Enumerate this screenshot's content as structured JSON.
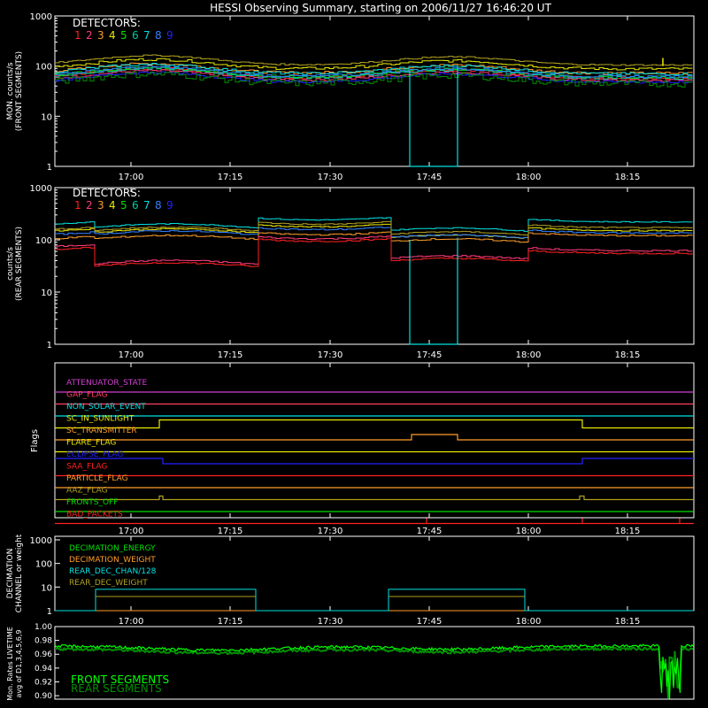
{
  "title": "HESSI Observing Summary, starting on 2006/11/27 16:46:20 UT",
  "colors": {
    "det": [
      "#ff2020",
      "#ff3b7a",
      "#ff9d2a",
      "#e8e800",
      "#00e000",
      "#00c8a0",
      "#00e0e0",
      "#3080ff",
      "#2020ff"
    ],
    "olive": "#b0a020",
    "bright_green": "#00ff00",
    "dark_green": "#009000"
  },
  "xaxis": {
    "start": "16:46:20",
    "end": "18:27:00",
    "ticks": [
      "17:00",
      "17:15",
      "17:30",
      "17:45",
      "18:00",
      "18:15"
    ]
  },
  "panels": {
    "front": {
      "label": "DETECTORS:",
      "digits": [
        "1",
        "2",
        "3",
        "4",
        "5",
        "6",
        "7",
        "8",
        "9"
      ],
      "ylabel": "MON. counts/s\n(FRONT SEGMENTS)",
      "ylog": true,
      "yticks": [
        "1",
        "10",
        "100",
        "1000"
      ],
      "ylim": [
        1,
        1000
      ]
    },
    "rear": {
      "label": "DETECTORS:",
      "digits": [
        "1",
        "2",
        "3",
        "4",
        "5",
        "6",
        "7",
        "8",
        "9"
      ],
      "ylabel": "counts/s\n(REAR SEGMENTS)",
      "ylog": true,
      "yticks": [
        "1",
        "10",
        "100",
        "1000"
      ],
      "ylim": [
        1,
        1000
      ]
    },
    "flags": {
      "ylabel": "Flags",
      "items": [
        {
          "label": "ATTENUATOR_STATE",
          "color": "#d040d0"
        },
        {
          "label": "GAP_FLAG",
          "color": "#ff4060"
        },
        {
          "label": "NON_SOLAR_EVENT",
          "color": "#00e0e0"
        },
        {
          "label": "SC_IN_SUNLIGHT",
          "color": "#e8e800"
        },
        {
          "label": "SC_TRANSMITTER",
          "color": "#ff9d2a"
        },
        {
          "label": "FLARE_FLAG",
          "color": "#e8e800"
        },
        {
          "label": "ECLIPSE_FLAG",
          "color": "#2020ff"
        },
        {
          "label": "SAA_FLAG",
          "color": "#ff2020"
        },
        {
          "label": "PARTICLE_FLAG",
          "color": "#ff9d2a"
        },
        {
          "label": "AAZ_FLAG",
          "color": "#b0a020"
        },
        {
          "label": "FRONTS_OFF",
          "color": "#00e000"
        },
        {
          "label": "BAD_PACKETS",
          "color": "#ff2020"
        }
      ]
    },
    "decim": {
      "ylabel1": "DECIMATION",
      "ylabel2": "CHANNEL or weight",
      "yticks": [
        "1",
        "10",
        "100",
        "1000"
      ],
      "legend": [
        {
          "label": "DECIMATION_ENERGY",
          "color": "#00e000"
        },
        {
          "label": "DECIMATION_WEIGHT",
          "color": "#ff9d2a"
        },
        {
          "label": "REAR_DEC_CHAN/128",
          "color": "#00e0e0"
        },
        {
          "label": "REAR_DEC_WEIGHT",
          "color": "#b0a020"
        }
      ]
    },
    "live": {
      "ylabel1": "Mon. Rates LIVETIME",
      "ylabel2": "avg of D1,3,4,5,6,9",
      "yticks": [
        "0.90",
        "0.92",
        "0.94",
        "0.96",
        "0.98",
        "1.00"
      ],
      "ylim": [
        0.9,
        1.0
      ],
      "legend": [
        {
          "label": "FRONT SEGMENTS",
          "color": "#00ff00"
        },
        {
          "label": "REAR SEGMENTS",
          "color": "#009000"
        }
      ]
    }
  },
  "chart_data": {
    "type": "line",
    "title": "HESSI Observing Summary, starting on 2006/11/27 16:46:20 UT",
    "front_series": [
      {
        "name": "1",
        "values": [
          60,
          120,
          70,
          100,
          55
        ]
      },
      {
        "name": "2",
        "values": [
          55,
          110,
          65,
          95,
          55
        ]
      },
      {
        "name": "3",
        "values": [
          75,
          150,
          85,
          130,
          70
        ]
      },
      {
        "name": "4",
        "values": [
          90,
          160,
          95,
          140,
          75
        ]
      },
      {
        "name": "5",
        "values": [
          60,
          120,
          65,
          95,
          50
        ]
      },
      {
        "name": "6",
        "values": [
          58,
          115,
          65,
          90,
          50
        ]
      },
      {
        "name": "7",
        "values": [
          70,
          130,
          80,
          120,
          65
        ]
      },
      {
        "name": "8",
        "values": [
          62,
          125,
          72,
          105,
          60
        ]
      },
      {
        "name": "9",
        "values": [
          50,
          100,
          55,
          80,
          45
        ]
      }
    ],
    "rear_series": [
      {
        "name": "1",
        "values": [
          65,
          30,
          110,
          60,
          60
        ]
      },
      {
        "name": "2",
        "values": [
          70,
          32,
          115,
          60,
          65
        ]
      },
      {
        "name": "3",
        "values": [
          100,
          90,
          160,
          130,
          150
        ]
      },
      {
        "name": "4",
        "values": [
          150,
          150,
          200,
          150,
          170
        ]
      },
      {
        "name": "7",
        "values": [
          200,
          200,
          260,
          190,
          240
        ]
      }
    ],
    "livetime": {
      "front": 0.97,
      "rear": 0.965
    }
  }
}
